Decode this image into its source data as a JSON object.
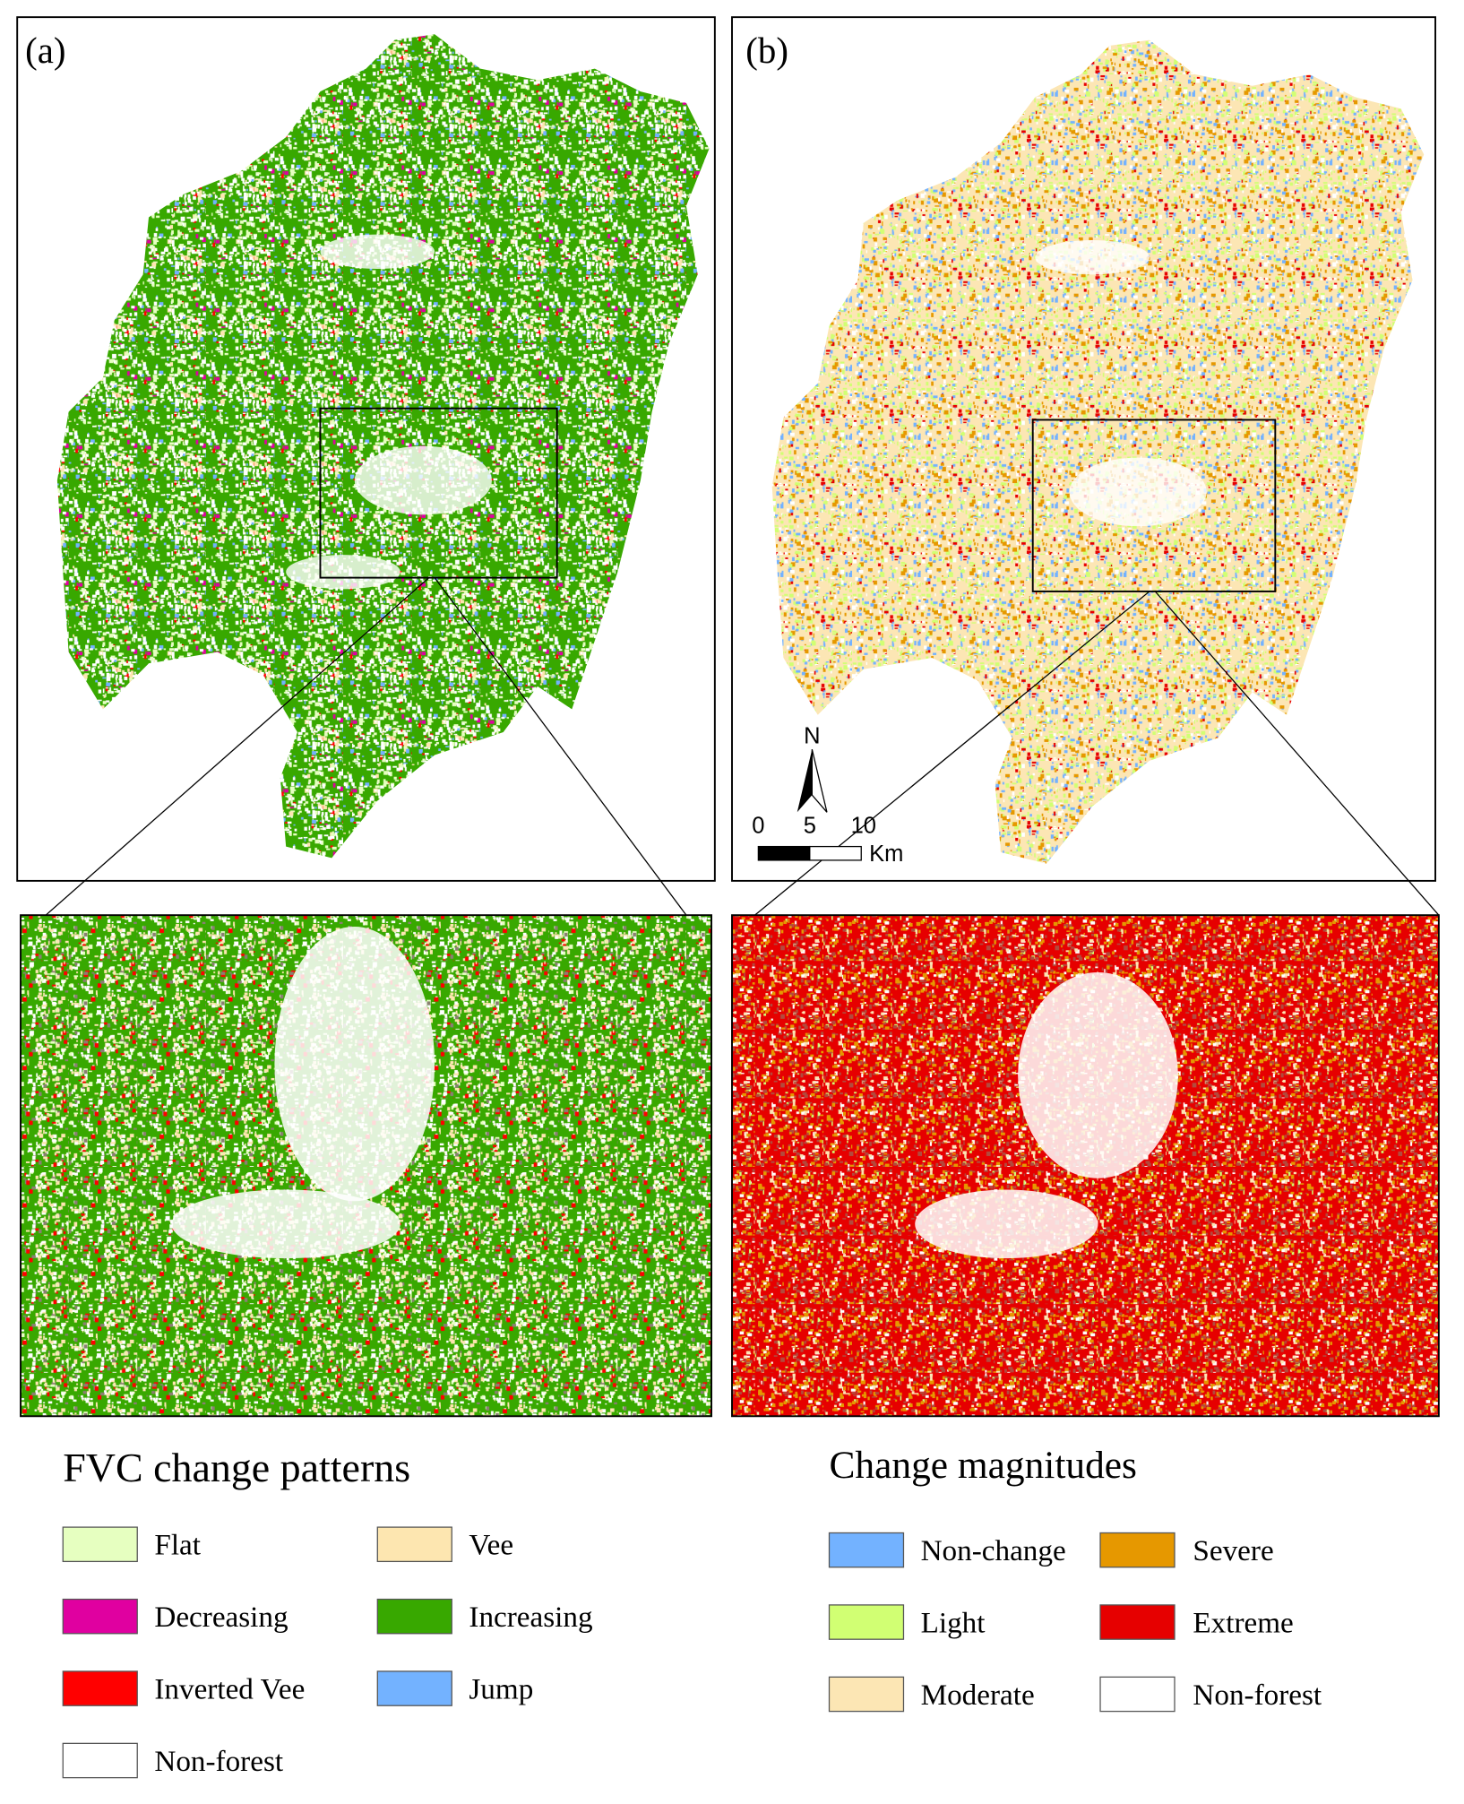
{
  "panels": [
    {
      "label": "(a)"
    },
    {
      "label": "(b)"
    }
  ],
  "scale_bar": {
    "ticks": [
      "0",
      "5",
      "10"
    ],
    "unit": "Km"
  },
  "north_arrow": {
    "label": "N"
  },
  "legends": [
    {
      "title": "FVC change patterns",
      "items": [
        {
          "label": "Flat",
          "color": "#e6ffc0"
        },
        {
          "label": "Vee",
          "color": "#fde6b0"
        },
        {
          "label": "Decreasing",
          "color": "#e000a0"
        },
        {
          "label": "Increasing",
          "color": "#38a800"
        },
        {
          "label": "Inverted Vee",
          "color": "#ff0000"
        },
        {
          "label": "Jump",
          "color": "#73b2ff"
        },
        {
          "label": "Non-forest",
          "color": "#ffffff"
        }
      ]
    },
    {
      "title": "Change magnitudes",
      "items": [
        {
          "label": "Non-change",
          "color": "#73b2ff"
        },
        {
          "label": "Severe",
          "color": "#e69800"
        },
        {
          "label": "Light",
          "color": "#d1ff73"
        },
        {
          "label": "Extreme",
          "color": "#e60000"
        },
        {
          "label": "Moderate",
          "color": "#fce6b4"
        },
        {
          "label": "Non-forest",
          "color": "#ffffff"
        }
      ]
    }
  ]
}
